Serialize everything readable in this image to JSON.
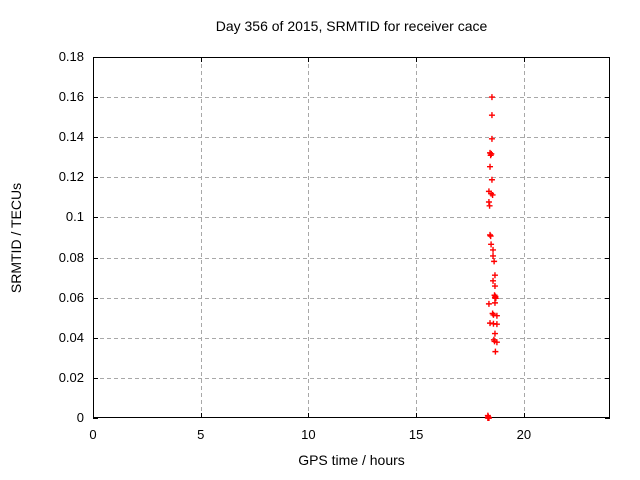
{
  "figure": {
    "background": "#ffffff"
  },
  "chart_data": {
    "type": "scatter",
    "title": "Day 356 of 2015, SRMTID for receiver cace",
    "xlabel": "GPS time / hours",
    "ylabel": "SRMTID / TECUs",
    "xlim": [
      0,
      24
    ],
    "ylim": [
      0,
      0.18
    ],
    "xticks": {
      "values": [
        0,
        5,
        10,
        15,
        20
      ],
      "labels": [
        "0",
        "5",
        "10",
        "15",
        "20"
      ]
    },
    "yticks": {
      "values": [
        0,
        0.02,
        0.04,
        0.06,
        0.08,
        0.1,
        0.12,
        0.14,
        0.16,
        0.18
      ],
      "labels": [
        "0",
        "0.02",
        "0.04",
        "0.06",
        "0.08",
        "0.1",
        "0.12",
        "0.14",
        "0.16",
        "0.18"
      ]
    },
    "grid": true,
    "legend_position": "none",
    "grid_color": "#a8a8a8",
    "axis_color": "#000000",
    "series": [
      {
        "name": "SRMTID",
        "marker": "plus",
        "color": "#ff0000",
        "points": [
          [
            18.52,
            0.16
          ],
          [
            18.52,
            0.151
          ],
          [
            18.52,
            0.1392
          ],
          [
            18.43,
            0.1322
          ],
          [
            18.49,
            0.1317
          ],
          [
            18.46,
            0.131
          ],
          [
            18.43,
            0.1253
          ],
          [
            18.52,
            0.1188
          ],
          [
            18.38,
            0.113
          ],
          [
            18.48,
            0.1119
          ],
          [
            18.55,
            0.1112
          ],
          [
            18.38,
            0.1077
          ],
          [
            18.41,
            0.1058
          ],
          [
            18.43,
            0.0913
          ],
          [
            18.46,
            0.0907
          ],
          [
            18.48,
            0.0866
          ],
          [
            18.57,
            0.0838
          ],
          [
            18.57,
            0.0808
          ],
          [
            18.62,
            0.0781
          ],
          [
            18.66,
            0.0712
          ],
          [
            18.57,
            0.0684
          ],
          [
            18.66,
            0.0658
          ],
          [
            18.64,
            0.0612
          ],
          [
            18.68,
            0.0606
          ],
          [
            18.66,
            0.06
          ],
          [
            18.7,
            0.0597
          ],
          [
            18.66,
            0.0574
          ],
          [
            18.38,
            0.0569
          ],
          [
            18.55,
            0.0521
          ],
          [
            18.59,
            0.0514
          ],
          [
            18.75,
            0.051
          ],
          [
            18.43,
            0.0473
          ],
          [
            18.59,
            0.047
          ],
          [
            18.75,
            0.0468
          ],
          [
            18.66,
            0.0421
          ],
          [
            18.61,
            0.039
          ],
          [
            18.64,
            0.0382
          ],
          [
            18.75,
            0.0378
          ],
          [
            18.68,
            0.0331
          ],
          [
            18.33,
            0.0012
          ],
          [
            18.35,
            0.0006
          ],
          [
            18.33,
            0.0
          ],
          [
            18.36,
            0.0
          ],
          [
            18.38,
            0.0
          ]
        ]
      }
    ]
  }
}
